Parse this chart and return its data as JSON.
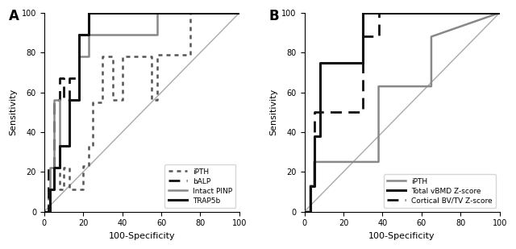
{
  "panel_A": {
    "title": "A",
    "curves": {
      "iPTH": {
        "x": [
          0,
          2,
          2,
          5,
          5,
          8,
          8,
          10,
          10,
          13,
          13,
          20,
          20,
          23,
          23,
          25,
          25,
          30,
          30,
          35,
          35,
          40,
          40,
          55,
          55,
          58,
          58,
          75,
          75,
          100
        ],
        "y": [
          0,
          0,
          11,
          11,
          22,
          22,
          11,
          11,
          22,
          22,
          11,
          11,
          23,
          23,
          33,
          33,
          55,
          55,
          78,
          78,
          56,
          56,
          78,
          78,
          56,
          56,
          79,
          79,
          100,
          100
        ],
        "color": "#555555",
        "linestyle": "dotted",
        "linewidth": 1.8
      },
      "bALP": {
        "x": [
          0,
          2,
          2,
          5,
          5,
          8,
          8,
          10,
          10,
          13,
          13,
          18,
          18,
          23,
          23,
          100
        ],
        "y": [
          0,
          0,
          22,
          22,
          56,
          56,
          67,
          67,
          56,
          56,
          67,
          67,
          89,
          89,
          100,
          100
        ],
        "color": "#111111",
        "linestyle": "dashed",
        "linewidth": 2.0
      },
      "IntactPINP": {
        "x": [
          0,
          3,
          3,
          5,
          5,
          8,
          8,
          13,
          13,
          18,
          18,
          23,
          23,
          58,
          58,
          63,
          63,
          100
        ],
        "y": [
          0,
          0,
          22,
          22,
          56,
          56,
          33,
          33,
          56,
          56,
          78,
          78,
          89,
          89,
          100,
          100,
          100,
          100
        ],
        "color": "#888888",
        "linestyle": "solid",
        "linewidth": 1.8
      },
      "TRAP5b": {
        "x": [
          0,
          3,
          3,
          5,
          5,
          8,
          8,
          13,
          13,
          18,
          18,
          23,
          23,
          55,
          55,
          63,
          63,
          100
        ],
        "y": [
          0,
          0,
          11,
          11,
          22,
          22,
          33,
          33,
          56,
          56,
          89,
          89,
          100,
          100,
          100,
          100,
          100,
          100
        ],
        "color": "#111111",
        "linestyle": "solid",
        "linewidth": 2.2
      }
    },
    "legend": {
      "iPTH": {
        "color": "#555555",
        "linestyle": "dotted",
        "linewidth": 1.8
      },
      "bALP": {
        "color": "#111111",
        "linestyle": "dashed",
        "linewidth": 2.0
      },
      "Intact PINP": {
        "color": "#888888",
        "linestyle": "solid",
        "linewidth": 1.8
      },
      "TRAP5b": {
        "color": "#111111",
        "linestyle": "solid",
        "linewidth": 2.2
      }
    },
    "xlim": [
      0,
      100
    ],
    "ylim": [
      0,
      100
    ],
    "xlabel": "100-Specificity",
    "ylabel": "Sensitivity",
    "xticks": [
      0,
      20,
      40,
      60,
      80,
      100
    ],
    "yticks": [
      0,
      20,
      40,
      60,
      80,
      100
    ]
  },
  "panel_B": {
    "title": "B",
    "curves": {
      "iPTH": {
        "x": [
          0,
          3,
          3,
          5,
          5,
          38,
          38,
          65,
          65,
          100
        ],
        "y": [
          0,
          0,
          13,
          13,
          25,
          25,
          63,
          63,
          88,
          100
        ],
        "color": "#888888",
        "linestyle": "solid",
        "linewidth": 1.8
      },
      "TotalvBMD": {
        "x": [
          0,
          3,
          3,
          5,
          5,
          8,
          8,
          30,
          30,
          38,
          38,
          100
        ],
        "y": [
          0,
          0,
          13,
          13,
          38,
          38,
          75,
          75,
          100,
          100,
          100,
          100
        ],
        "color": "#111111",
        "linestyle": "solid",
        "linewidth": 2.2
      },
      "CorticalBVTV": {
        "x": [
          0,
          3,
          3,
          5,
          5,
          8,
          8,
          30,
          30,
          38,
          38,
          100
        ],
        "y": [
          0,
          0,
          13,
          13,
          50,
          50,
          50,
          50,
          88,
          88,
          100,
          100
        ],
        "color": "#111111",
        "linestyle": "dashed",
        "linewidth": 2.0
      }
    },
    "legend": {
      "iPTH": {
        "color": "#888888",
        "linestyle": "solid",
        "linewidth": 1.8
      },
      "Total vBMD Z-score": {
        "color": "#111111",
        "linestyle": "solid",
        "linewidth": 2.2
      },
      "Cortical BV/TV Z-score": {
        "color": "#111111",
        "linestyle": "dashed",
        "linewidth": 2.0
      }
    },
    "xlim": [
      0,
      100
    ],
    "ylim": [
      0,
      100
    ],
    "xlabel": "100-Specificity",
    "ylabel": "Sensitivity",
    "xticks": [
      0,
      20,
      40,
      60,
      80,
      100
    ],
    "yticks": [
      0,
      20,
      40,
      60,
      80,
      100
    ]
  }
}
